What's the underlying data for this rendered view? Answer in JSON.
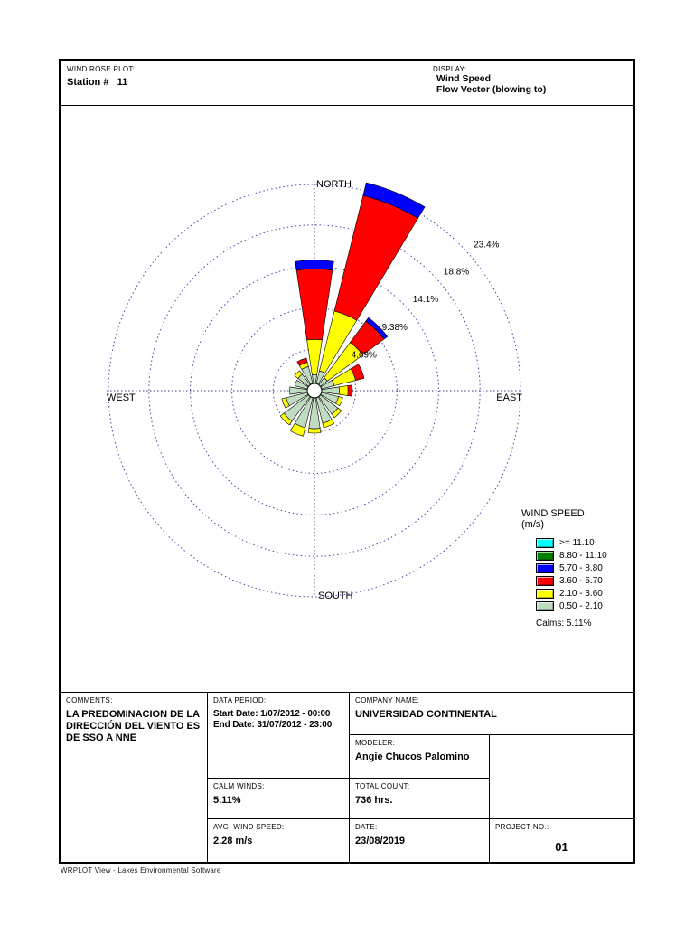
{
  "header": {
    "plot_label": "WIND ROSE PLOT:",
    "station": "Station #   11",
    "display_label": "DISPLAY:",
    "display_line1": "Wind Speed",
    "display_line2": "Flow Vector (blowing to)"
  },
  "chart_data": {
    "type": "wind-rose",
    "title": "Wind Rose - Station # 11",
    "grid_color": "#4545a5",
    "axis_color": "#3c3c78",
    "direction_labels": {
      "north": "NORTH",
      "east": "EAST",
      "south": "SOUTH",
      "west": "WEST"
    },
    "ring_percent": [
      4.69,
      9.38,
      14.1,
      18.8,
      23.4
    ],
    "ring_labels": [
      "4.69%",
      "9.38%",
      "14.1%",
      "18.8%",
      "23.4%"
    ],
    "legend_title": "WIND SPEED",
    "legend_units": "(m/s)",
    "calms_label": "Calms: 5.11%",
    "calms_percent": 5.11,
    "speed_bins": [
      {
        "label": "0.50 - 2.10",
        "color": "#c0dcc0"
      },
      {
        "label": "2.10 - 3.60",
        "color": "#ffff00"
      },
      {
        "label": "3.60 - 5.70",
        "color": "#ff0000"
      },
      {
        "label": "5.70 - 8.80",
        "color": "#0000ff"
      },
      {
        "label": "8.80 - 11.10",
        "color": "#008000"
      },
      {
        "label": ">= 11.10",
        "color": "#00ffff"
      }
    ],
    "directions": [
      "N",
      "NNE",
      "NE",
      "ENE",
      "E",
      "ESE",
      "SE",
      "SSE",
      "S",
      "SSW",
      "SW",
      "WSW",
      "W",
      "WNW",
      "NW",
      "NNW"
    ],
    "series": {
      "N": [
        1.0,
        4.0,
        8.0,
        1.0,
        0,
        0
      ],
      "NNE": [
        1.5,
        7.0,
        13.5,
        1.5,
        0,
        0
      ],
      "NE": [
        1.0,
        5.0,
        3.0,
        0.5,
        0,
        0
      ],
      "ENE": [
        1.5,
        2.5,
        1.0,
        0,
        0,
        0
      ],
      "E": [
        2.0,
        1.0,
        0.5,
        0,
        0,
        0
      ],
      "ESE": [
        2.0,
        0.5,
        0,
        0,
        0,
        0
      ],
      "SE": [
        2.5,
        0.5,
        0,
        0,
        0,
        0
      ],
      "SSE": [
        3.0,
        0.5,
        0,
        0,
        0,
        0
      ],
      "S": [
        3.5,
        0.5,
        0,
        0,
        0,
        0
      ],
      "SSW": [
        3.5,
        1.0,
        0,
        0,
        0,
        0
      ],
      "SW": [
        3.5,
        0.5,
        0,
        0,
        0,
        0
      ],
      "WSW": [
        2.5,
        0.5,
        0,
        0,
        0,
        0
      ],
      "W": [
        2.0,
        0,
        0,
        0,
        0,
        0
      ],
      "WNW": [
        1.5,
        0,
        0,
        0,
        0,
        0
      ],
      "NW": [
        1.5,
        0.5,
        0,
        0,
        0,
        0
      ],
      "NNW": [
        2.0,
        0.5,
        0.5,
        0,
        0,
        0
      ]
    }
  },
  "table": {
    "comments_label": "COMMENTS:",
    "comments": "LA PREDOMINACION DE LA DIRECCIÓN DEL VIENTO ES DE SSO A NNE",
    "data_period_label": "DATA PERIOD:",
    "start_date": "Start Date: 1/07/2012 - 00:00",
    "end_date": "End Date: 31/07/2012 - 23:00",
    "company_label": "COMPANY NAME:",
    "company": "UNIVERSIDAD CONTINENTAL",
    "modeler_label": "MODELER:",
    "modeler": "Angie Chucos Palomino",
    "calm_winds_label": "CALM WINDS:",
    "calm_winds": "5.11%",
    "total_count_label": "TOTAL COUNT:",
    "total_count": "736 hrs.",
    "avg_wind_label": "AVG. WIND SPEED:",
    "avg_wind": "2.28 m/s",
    "date_label": "DATE:",
    "date": "23/08/2019",
    "project_label": "PROJECT NO.:",
    "project": "01"
  },
  "footer": "WRPLOT View - Lakes Environmental Software"
}
